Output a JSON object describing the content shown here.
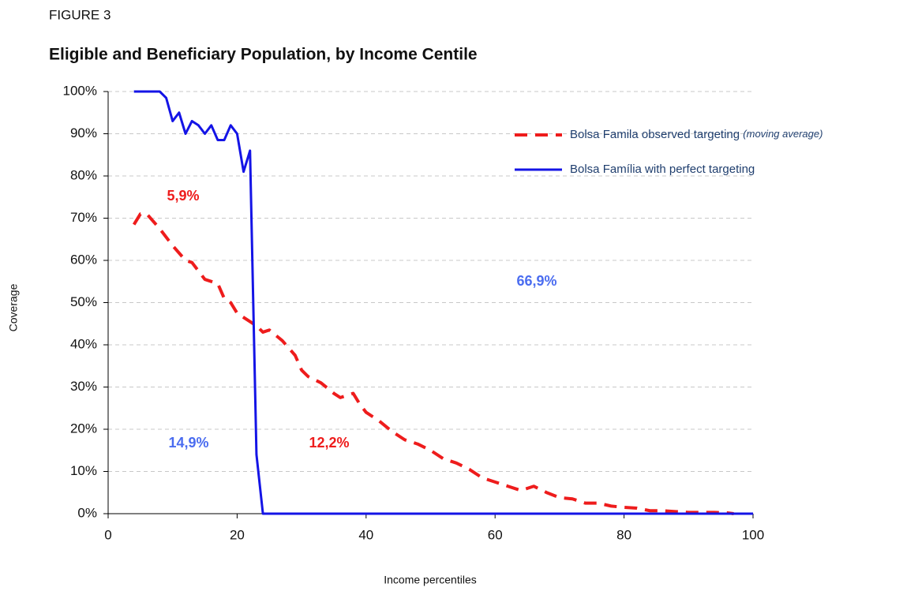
{
  "chart_data": {
    "type": "line",
    "figure_label": "FIGURE 3",
    "title": "Eligible and Beneficiary Population, by Income Centile",
    "xlabel": "Income percentiles",
    "ylabel": "Coverage",
    "xlim": [
      0,
      100
    ],
    "xticks": [
      0,
      20,
      40,
      60,
      80,
      100
    ],
    "ylim": [
      0,
      100
    ],
    "yticks": [
      {
        "value": 0,
        "label": "0%"
      },
      {
        "value": 10,
        "label": "10%"
      },
      {
        "value": 20,
        "label": "20%"
      },
      {
        "value": 30,
        "label": "30%"
      },
      {
        "value": 40,
        "label": "40%"
      },
      {
        "value": 50,
        "label": "50%"
      },
      {
        "value": 60,
        "label": "60%"
      },
      {
        "value": 70,
        "label": "70%"
      },
      {
        "value": 80,
        "label": "80%"
      },
      {
        "value": 90,
        "label": "90%"
      },
      {
        "value": 100,
        "label": "100%"
      }
    ],
    "grid": true,
    "legend": "upper right",
    "series": [
      {
        "name": "Bolsa Famila observed targeting",
        "name_note": "(moving average)",
        "color": "#ee1c1c",
        "dashed": true,
        "x": [
          4,
          5,
          6,
          8,
          10,
          12,
          13,
          15,
          17,
          18,
          19,
          20,
          22,
          23,
          24,
          25,
          27,
          29,
          30,
          31,
          33,
          35,
          36,
          38,
          39,
          40,
          42,
          44,
          46,
          48,
          50,
          52,
          54,
          56,
          58,
          60,
          62,
          64,
          66,
          68,
          70,
          72,
          74,
          76,
          78,
          80,
          82,
          84,
          86,
          88,
          90,
          92,
          94,
          96,
          97
        ],
        "values": [
          68.5,
          71,
          71,
          67.5,
          63.5,
          60,
          59.5,
          55.5,
          54.5,
          51,
          50,
          47.5,
          45.5,
          44.5,
          43,
          43.5,
          41,
          37.5,
          34,
          32.5,
          31,
          28.5,
          27.5,
          28.5,
          26,
          24,
          22,
          19.5,
          17.5,
          16.5,
          15,
          13,
          12,
          10.5,
          8.5,
          7.5,
          6.5,
          5.5,
          6.5,
          5,
          3.8,
          3.5,
          2.5,
          2.5,
          1.8,
          1.5,
          1.3,
          0.7,
          0.7,
          0.5,
          0.3,
          0.3,
          0.3,
          0.2,
          0
        ]
      },
      {
        "name": "Bolsa Família with perfect targeting",
        "color": "#1414e6",
        "dashed": false,
        "x": [
          4,
          5,
          6,
          7,
          8,
          9,
          10,
          11,
          12,
          13,
          14,
          15,
          16,
          17,
          18,
          19,
          20,
          21,
          22,
          23,
          24,
          100
        ],
        "values": [
          100,
          100,
          100,
          100,
          100,
          98.5,
          93,
          95,
          90,
          93,
          92,
          90,
          92,
          88.5,
          88.5,
          92,
          90,
          81,
          86,
          14,
          0,
          0
        ]
      }
    ],
    "annotations": [
      {
        "text": "5,9%",
        "color": "#ee1c1c"
      },
      {
        "text": "66,9%",
        "color": "#4a6cf0"
      },
      {
        "text": "14,9%",
        "color": "#4a6cf0"
      },
      {
        "text": "12,2%",
        "color": "#ee1c1c"
      }
    ]
  }
}
